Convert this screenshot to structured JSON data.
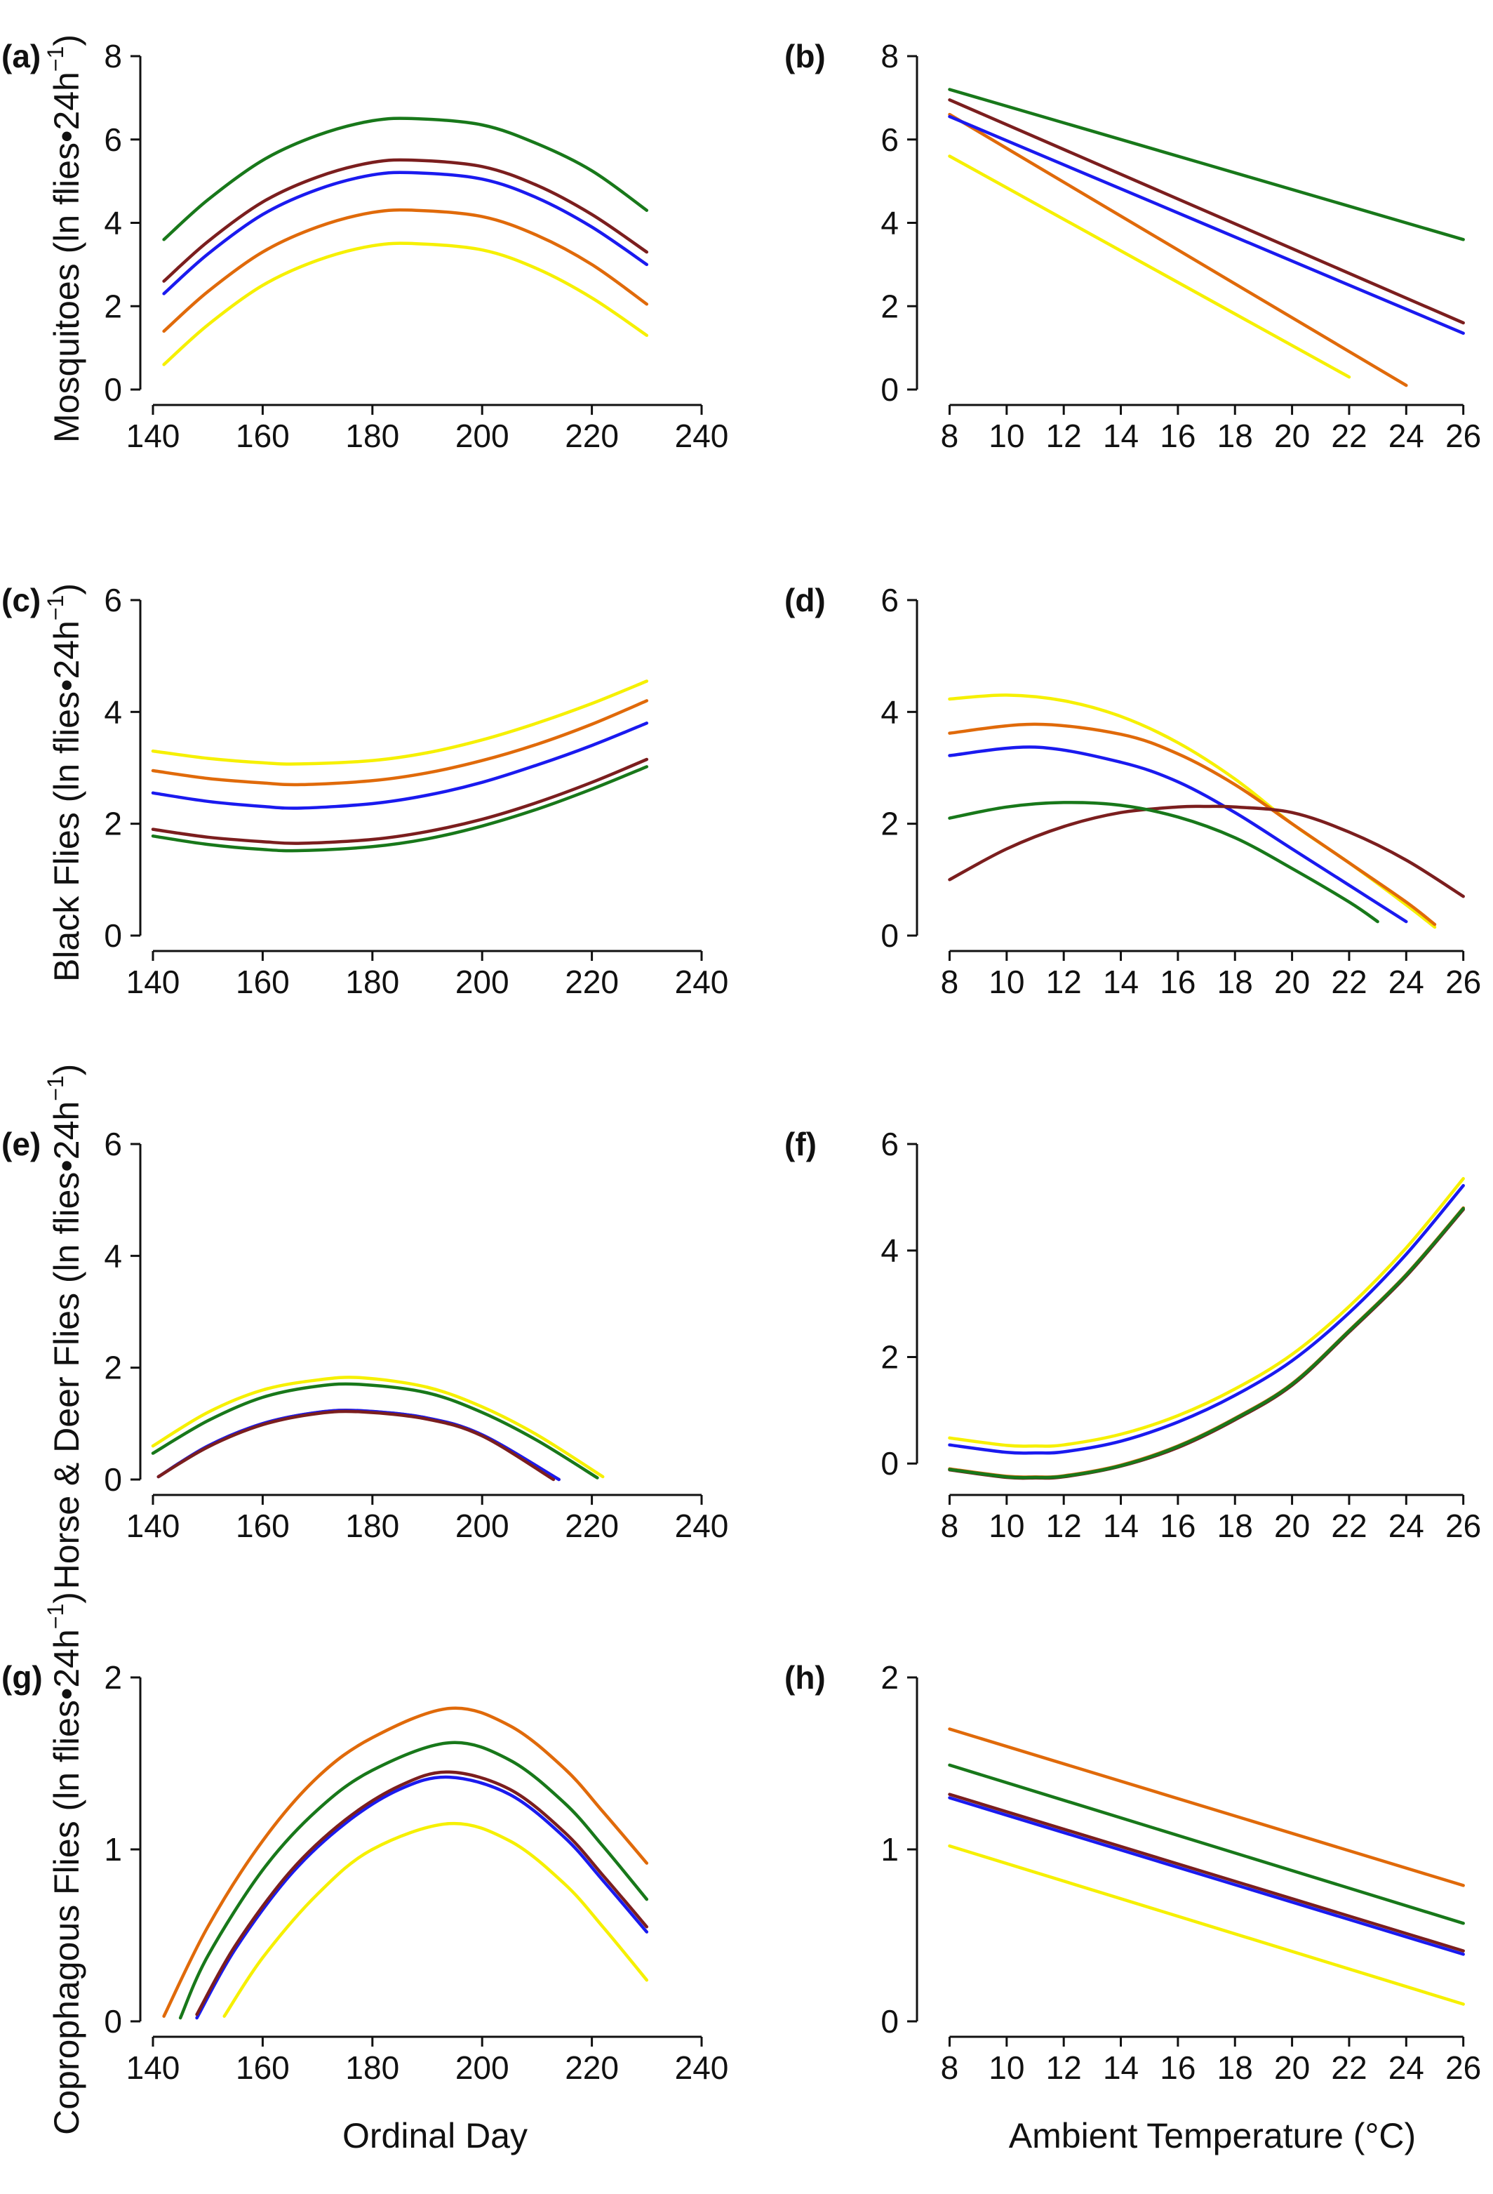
{
  "series_colors": [
    "#f6f000",
    "#e06a0a",
    "#1a1aef",
    "#7b1e1e",
    "#18781a"
  ],
  "figure": {
    "rows": [
      {
        "ylabel": "Mosquitoes (ln flies•24h",
        "ylabel_sup": "−1",
        "ylabel_end": ")"
      },
      {
        "ylabel": "Black Flies (ln flies•24h",
        "ylabel_sup": "−1",
        "ylabel_end": ")"
      },
      {
        "ylabel": "Horse & Deer Flies (ln flies•24h",
        "ylabel_sup": "−1",
        "ylabel_end": ")"
      },
      {
        "ylabel": "Coprophagous Flies (ln flies•24h",
        "ylabel_sup": "−1",
        "ylabel_end": ")"
      }
    ],
    "bottom_xlabels": [
      "Ordinal Day",
      "Ambient Temperature (°C)"
    ]
  },
  "chart_data": [
    {
      "id": "a",
      "label": "(a)",
      "type": "line",
      "xlabel": "",
      "ylabel": "Mosquitoes (ln flies•24h⁻¹)",
      "xlim": [
        140,
        240
      ],
      "ylim": [
        0,
        8
      ],
      "xticks": [
        140,
        160,
        180,
        200,
        220,
        240
      ],
      "yticks": [
        0,
        2,
        4,
        6,
        8
      ],
      "x": [
        142,
        150,
        160,
        170,
        180,
        188,
        200,
        210,
        220,
        230
      ],
      "series": [
        {
          "values": [
            0.6,
            1.55,
            2.5,
            3.1,
            3.45,
            3.5,
            3.35,
            2.9,
            2.2,
            1.3
          ]
        },
        {
          "values": [
            1.4,
            2.35,
            3.3,
            3.9,
            4.25,
            4.3,
            4.15,
            3.7,
            3.0,
            2.05
          ]
        },
        {
          "values": [
            2.3,
            3.25,
            4.2,
            4.8,
            5.15,
            5.2,
            5.05,
            4.6,
            3.9,
            3.0
          ]
        },
        {
          "values": [
            2.6,
            3.55,
            4.5,
            5.1,
            5.45,
            5.5,
            5.35,
            4.9,
            4.2,
            3.3
          ]
        },
        {
          "values": [
            3.6,
            4.55,
            5.5,
            6.1,
            6.45,
            6.5,
            6.35,
            5.9,
            5.25,
            4.3
          ]
        }
      ]
    },
    {
      "id": "b",
      "label": "(b)",
      "type": "line",
      "xlabel": "",
      "ylabel": "",
      "xlim": [
        7.3,
        26.5
      ],
      "ylim": [
        0,
        8
      ],
      "xticks": [
        8,
        10,
        12,
        14,
        16,
        18,
        20,
        22,
        24,
        26
      ],
      "yticks": [
        0,
        2,
        4,
        6,
        8
      ],
      "series": [
        {
          "x": [
            8,
            22
          ],
          "values": [
            5.6,
            0.3
          ]
        },
        {
          "x": [
            8,
            24
          ],
          "values": [
            6.6,
            0.1
          ]
        },
        {
          "x": [
            8,
            26
          ],
          "values": [
            6.55,
            1.35
          ]
        },
        {
          "x": [
            8,
            26
          ],
          "values": [
            6.95,
            1.6
          ]
        },
        {
          "x": [
            8,
            26
          ],
          "values": [
            7.2,
            3.6
          ]
        }
      ]
    },
    {
      "id": "c",
      "label": "(c)",
      "type": "line",
      "xlabel": "",
      "ylabel": "Black Flies (ln flies•24h⁻¹)",
      "xlim": [
        140,
        240
      ],
      "ylim": [
        0,
        6
      ],
      "xticks": [
        140,
        160,
        180,
        200,
        220,
        240
      ],
      "yticks": [
        0,
        2,
        4,
        6
      ],
      "x": [
        140,
        150,
        160,
        167,
        180,
        190,
        200,
        210,
        220,
        230
      ],
      "series": [
        {
          "values": [
            3.3,
            3.17,
            3.09,
            3.07,
            3.13,
            3.27,
            3.5,
            3.8,
            4.15,
            4.55
          ]
        },
        {
          "values": [
            2.95,
            2.81,
            2.73,
            2.7,
            2.77,
            2.91,
            3.13,
            3.42,
            3.78,
            4.2
          ]
        },
        {
          "values": [
            2.55,
            2.4,
            2.31,
            2.28,
            2.36,
            2.51,
            2.74,
            3.05,
            3.4,
            3.8
          ]
        },
        {
          "values": [
            1.9,
            1.76,
            1.68,
            1.65,
            1.72,
            1.86,
            2.08,
            2.38,
            2.74,
            3.15
          ]
        },
        {
          "values": [
            1.78,
            1.63,
            1.54,
            1.52,
            1.59,
            1.73,
            1.96,
            2.26,
            2.62,
            3.02
          ]
        }
      ]
    },
    {
      "id": "d",
      "label": "(d)",
      "type": "line",
      "xlabel": "",
      "ylabel": "",
      "xlim": [
        7.3,
        26.5
      ],
      "ylim": [
        0,
        6
      ],
      "xticks": [
        8,
        10,
        12,
        14,
        16,
        18,
        20,
        22,
        24,
        26
      ],
      "yticks": [
        0,
        2,
        4,
        6
      ],
      "series": [
        {
          "x": [
            8,
            10,
            12,
            14,
            16,
            18,
            20,
            22,
            24,
            25
          ],
          "values": [
            4.23,
            4.3,
            4.2,
            3.92,
            3.45,
            2.8,
            2.0,
            1.3,
            0.55,
            0.15
          ]
        },
        {
          "x": [
            8,
            11,
            14,
            16,
            18,
            20,
            22,
            24,
            25
          ],
          "values": [
            3.62,
            3.78,
            3.6,
            3.25,
            2.7,
            2.0,
            1.3,
            0.6,
            0.2
          ]
        },
        {
          "x": [
            8,
            11,
            14,
            16,
            18,
            20,
            22,
            24
          ],
          "values": [
            3.22,
            3.37,
            3.1,
            2.75,
            2.2,
            1.55,
            0.9,
            0.25
          ]
        },
        {
          "x": [
            8,
            10,
            12,
            14,
            16,
            17,
            18,
            20,
            22,
            24,
            26
          ],
          "values": [
            1.0,
            1.55,
            1.95,
            2.2,
            2.3,
            2.31,
            2.3,
            2.2,
            1.85,
            1.35,
            0.7
          ]
        },
        {
          "x": [
            8,
            10,
            12,
            14,
            16,
            18,
            20,
            22,
            23
          ],
          "values": [
            2.1,
            2.3,
            2.38,
            2.33,
            2.12,
            1.75,
            1.2,
            0.6,
            0.25
          ]
        }
      ]
    },
    {
      "id": "e",
      "label": "(e)",
      "type": "line",
      "xlabel": "",
      "ylabel": "Horse & Deer Flies (ln flies•24h⁻¹)",
      "xlim": [
        140,
        240
      ],
      "ylim": [
        0,
        6
      ],
      "xticks": [
        140,
        160,
        180,
        200,
        220,
        240
      ],
      "yticks": [
        0,
        2,
        4,
        6
      ],
      "series": [
        {
          "x": [
            140,
            150,
            160,
            170,
            178,
            190,
            200,
            210,
            222
          ],
          "values": [
            0.6,
            1.2,
            1.6,
            1.78,
            1.82,
            1.65,
            1.3,
            0.8,
            0.05
          ]
        },
        {
          "x": [
            141,
            150,
            160,
            170,
            178,
            190,
            200,
            214
          ],
          "values": [
            0.05,
            0.6,
            1.0,
            1.2,
            1.23,
            1.1,
            0.8,
            0.0
          ]
        },
        {
          "x": [
            141,
            150,
            160,
            170,
            178,
            190,
            200,
            214
          ],
          "values": [
            0.05,
            0.6,
            1.0,
            1.2,
            1.23,
            1.1,
            0.8,
            0.0
          ]
        },
        {
          "x": [
            141,
            150,
            160,
            170,
            178,
            190,
            200,
            213
          ],
          "values": [
            0.05,
            0.58,
            0.98,
            1.18,
            1.21,
            1.08,
            0.78,
            0.0
          ]
        },
        {
          "x": [
            140,
            150,
            160,
            170,
            178,
            190,
            200,
            210,
            221
          ],
          "values": [
            0.47,
            1.05,
            1.47,
            1.67,
            1.7,
            1.55,
            1.2,
            0.7,
            0.03
          ]
        }
      ]
    },
    {
      "id": "f",
      "label": "(f)",
      "type": "line",
      "xlabel": "",
      "ylabel": "",
      "xlim": [
        7.3,
        26.5
      ],
      "ylim": [
        -0.3,
        6
      ],
      "xticks": [
        8,
        10,
        12,
        14,
        16,
        18,
        20,
        22,
        24,
        26
      ],
      "yticks": [
        0,
        2,
        4,
        6
      ],
      "series": [
        {
          "x": [
            8,
            10,
            11,
            12,
            14,
            16,
            18,
            20,
            22,
            24,
            26
          ],
          "values": [
            0.48,
            0.34,
            0.33,
            0.35,
            0.55,
            0.9,
            1.4,
            2.05,
            2.95,
            4.05,
            5.35
          ]
        },
        {
          "x": [
            8,
            10,
            11,
            12,
            14,
            16,
            18,
            20,
            22,
            24,
            26
          ],
          "values": [
            -0.1,
            -0.24,
            -0.25,
            -0.23,
            -0.03,
            0.33,
            0.85,
            1.5,
            2.5,
            3.55,
            4.8
          ]
        },
        {
          "x": [
            8,
            10,
            11,
            12,
            14,
            16,
            18,
            20,
            22,
            24,
            26
          ],
          "values": [
            0.35,
            0.21,
            0.2,
            0.22,
            0.42,
            0.78,
            1.28,
            1.93,
            2.83,
            3.93,
            5.22
          ]
        },
        {
          "x": [
            8,
            10,
            11,
            12,
            14,
            16,
            18,
            20,
            22,
            24,
            26
          ],
          "values": [
            -0.12,
            -0.26,
            -0.27,
            -0.25,
            -0.05,
            0.3,
            0.82,
            1.47,
            2.47,
            3.52,
            4.77
          ]
        },
        {
          "x": [
            8,
            10,
            11,
            12,
            14,
            16,
            18,
            20,
            22,
            24,
            26
          ],
          "values": [
            -0.11,
            -0.25,
            -0.26,
            -0.24,
            -0.04,
            0.32,
            0.84,
            1.49,
            2.49,
            3.54,
            4.79
          ]
        }
      ]
    },
    {
      "id": "g",
      "label": "(g)",
      "type": "line",
      "xlabel": "Ordinal Day",
      "ylabel": "Coprophagous Flies (ln flies•24h⁻¹)",
      "xlim": [
        140,
        240
      ],
      "ylim": [
        0,
        2
      ],
      "xticks": [
        140,
        160,
        180,
        200,
        220,
        240
      ],
      "yticks": [
        0,
        1,
        2
      ],
      "series": [
        {
          "x": [
            153,
            160,
            170,
            180,
            194,
            205,
            215,
            222,
            230
          ],
          "values": [
            0.03,
            0.37,
            0.74,
            1.0,
            1.15,
            1.05,
            0.8,
            0.55,
            0.24
          ]
        },
        {
          "x": [
            142,
            150,
            160,
            170,
            180,
            194,
            205,
            215,
            222,
            230
          ],
          "values": [
            0.03,
            0.55,
            1.05,
            1.42,
            1.65,
            1.82,
            1.72,
            1.47,
            1.22,
            0.92
          ]
        },
        {
          "x": [
            148,
            155,
            165,
            175,
            185,
            194,
            205,
            215,
            222,
            230
          ],
          "values": [
            0.02,
            0.42,
            0.85,
            1.15,
            1.35,
            1.42,
            1.32,
            1.07,
            0.82,
            0.52
          ]
        },
        {
          "x": [
            148,
            155,
            165,
            175,
            185,
            194,
            205,
            215,
            222,
            230
          ],
          "values": [
            0.04,
            0.44,
            0.87,
            1.17,
            1.37,
            1.45,
            1.35,
            1.1,
            0.85,
            0.55
          ]
        },
        {
          "x": [
            145,
            150,
            160,
            170,
            180,
            194,
            205,
            215,
            222,
            230
          ],
          "values": [
            0.02,
            0.38,
            0.88,
            1.23,
            1.46,
            1.62,
            1.52,
            1.27,
            1.02,
            0.71
          ]
        }
      ]
    },
    {
      "id": "h",
      "label": "(h)",
      "type": "line",
      "xlabel": "Ambient Temperature (°C)",
      "ylabel": "",
      "xlim": [
        7.3,
        26.5
      ],
      "ylim": [
        0,
        2
      ],
      "xticks": [
        8,
        10,
        12,
        14,
        16,
        18,
        20,
        22,
        24,
        26
      ],
      "yticks": [
        0,
        1,
        2
      ],
      "series": [
        {
          "x": [
            8,
            26
          ],
          "values": [
            1.02,
            0.1
          ]
        },
        {
          "x": [
            8,
            26
          ],
          "values": [
            1.7,
            0.79
          ]
        },
        {
          "x": [
            8,
            26
          ],
          "values": [
            1.3,
            0.39
          ]
        },
        {
          "x": [
            8,
            26
          ],
          "values": [
            1.32,
            0.41
          ]
        },
        {
          "x": [
            8,
            26
          ],
          "values": [
            1.49,
            0.57
          ]
        }
      ]
    }
  ]
}
